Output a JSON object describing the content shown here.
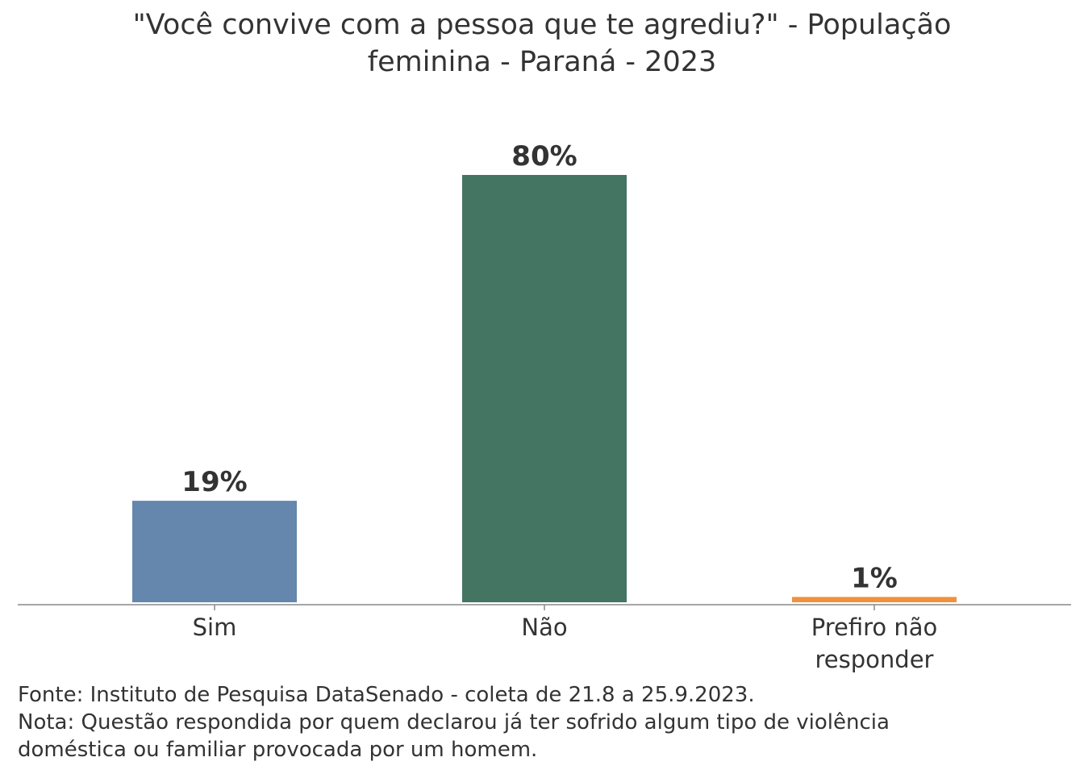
{
  "chart_data": {
    "type": "bar",
    "title_lines": [
      "\"Você convive com a pessoa que te agrediu?\" - População",
      "feminina - Paraná - 2023"
    ],
    "categories": [
      [
        "Sim"
      ],
      [
        "Não"
      ],
      [
        "Prefiro não",
        "responder"
      ]
    ],
    "values": [
      19,
      80,
      1
    ],
    "data_labels": [
      "19%",
      "80%",
      "1%"
    ],
    "colors": [
      "#6586AD",
      "#447563",
      "#F0913E"
    ],
    "ylim": [
      0,
      80
    ],
    "grid": false,
    "y_axis_visible": false
  },
  "notes": [
    "Fonte: Instituto de Pesquisa DataSenado - coleta de 21.8 a 25.9.2023.",
    "Nota: Questão respondida por quem declarou já ter sofrido algum tipo de violência",
    "doméstica ou familiar provocada por um homem."
  ]
}
